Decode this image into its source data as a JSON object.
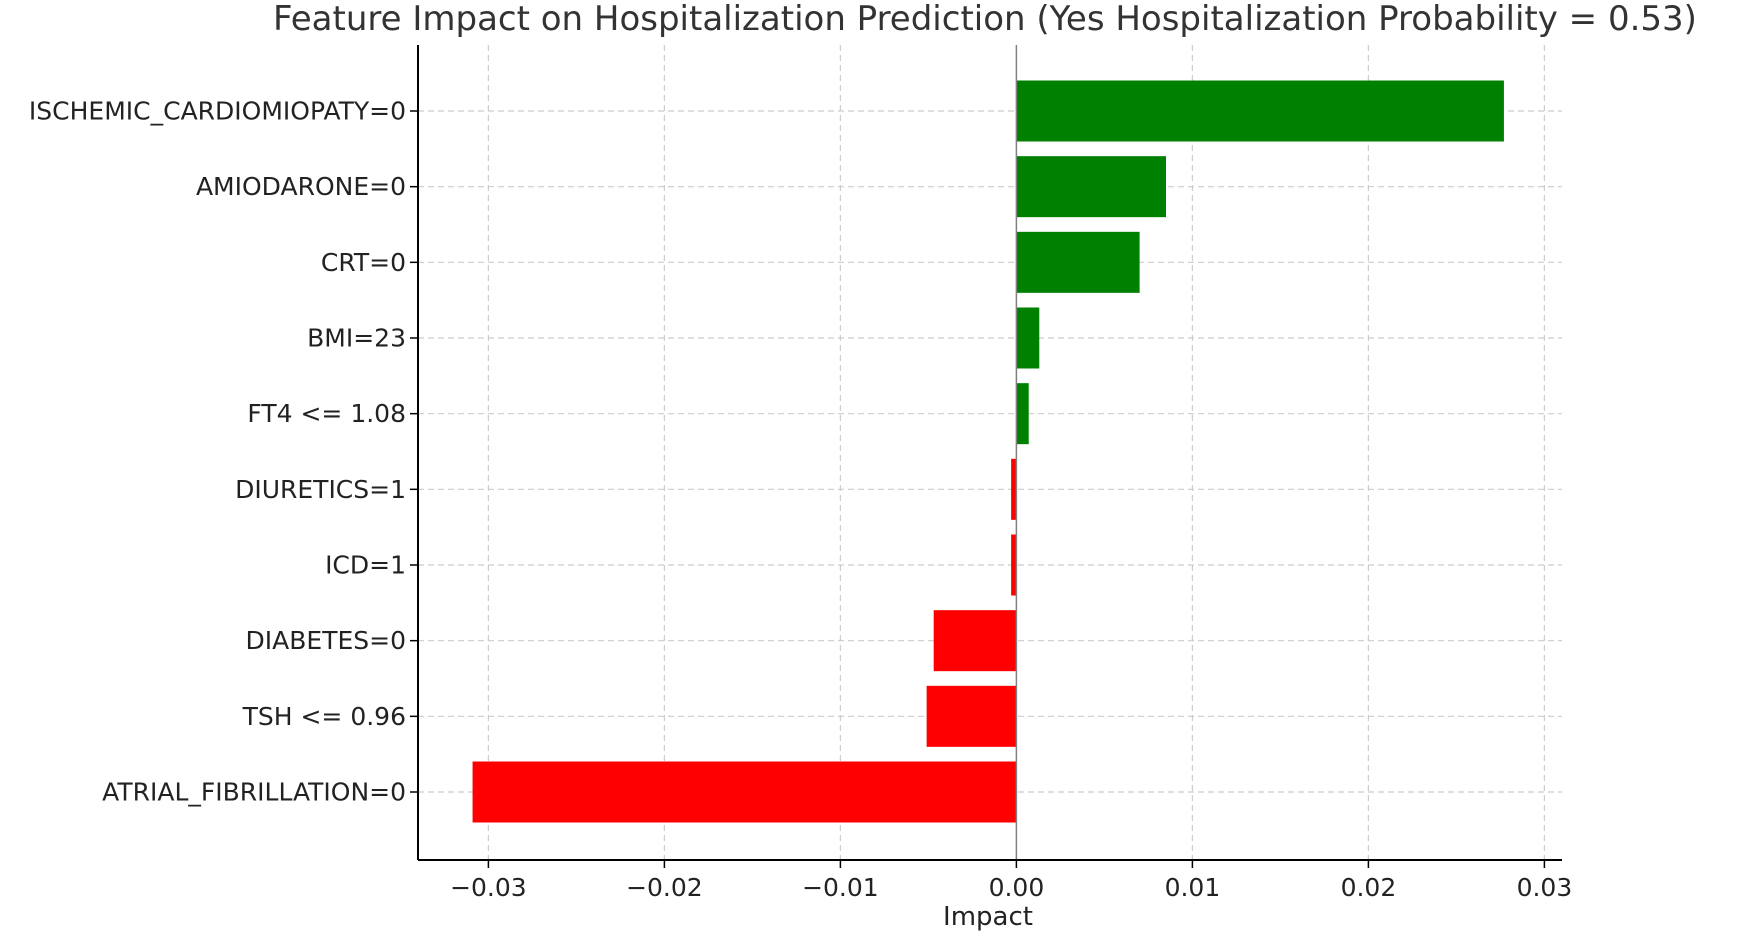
{
  "chart_data": {
    "type": "bar",
    "orientation": "horizontal",
    "title": "Feature Impact on Hospitalization Prediction (Yes Hospitalization Probability = 0.53)",
    "xlabel": "Impact",
    "ylabel": "",
    "xlim": [
      -0.034,
      0.031
    ],
    "xticks": [
      -0.03,
      -0.02,
      -0.01,
      0.0,
      0.01,
      0.02,
      0.03
    ],
    "xtick_labels": [
      "−0.03",
      "−0.02",
      "−0.01",
      "0.00",
      "0.01",
      "0.02",
      "0.03"
    ],
    "grid": true,
    "categories": [
      "ISCHEMIC_CARDIOMIOPATY=0",
      "AMIODARONE=0",
      "CRT=0",
      "BMI=23",
      "FT4 <= 1.08",
      "DIURETICS=1",
      "ICD=1",
      "DIABETES=0",
      "TSH <= 0.96",
      "ATRIAL_FIBRILLATION=0"
    ],
    "values": [
      0.0277,
      0.0085,
      0.007,
      0.0013,
      0.0007,
      -0.0003,
      -0.0003,
      -0.0047,
      -0.0051,
      -0.0309
    ],
    "colors": {
      "positive": "#008000",
      "negative": "#ff0000",
      "grid": "#cccccc",
      "zero_line": "#808080",
      "axis": "#000000",
      "title": "#333333"
    }
  }
}
